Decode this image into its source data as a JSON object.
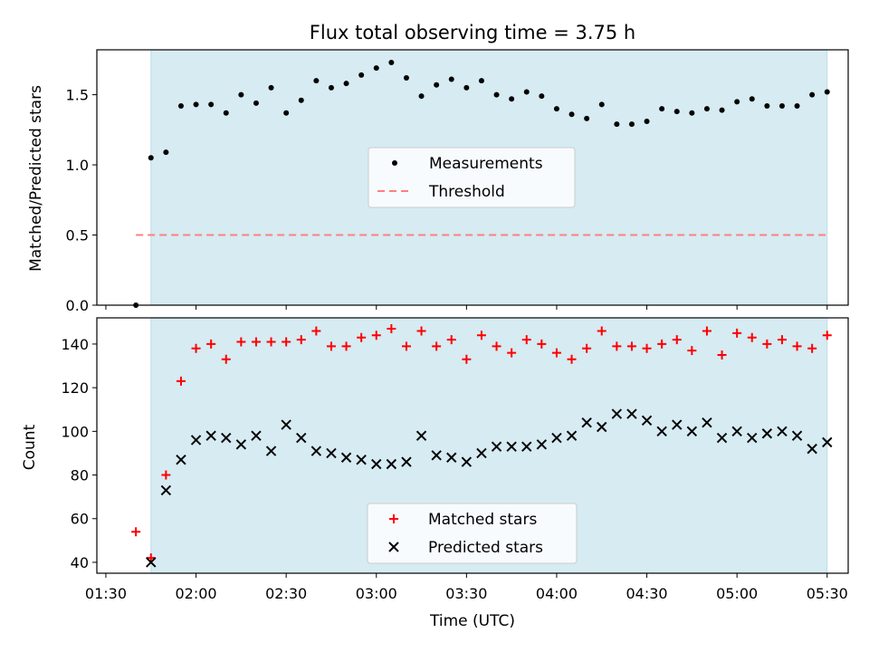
{
  "colors": {
    "shade": "#add8e6",
    "measurement": "#000000",
    "threshold": "#ff7f7f",
    "matched": "#ff0000",
    "predicted": "#000000"
  },
  "chart_data": [
    {
      "type": "scatter",
      "title": "Flux total observing time = 3.75 h",
      "ylabel": "Matched/Predicted stars",
      "xlabel": "",
      "xlim": [
        "01:27",
        "05:37"
      ],
      "ylim": [
        0,
        1.82
      ],
      "yticks": [
        0.0,
        0.5,
        1.0,
        1.5
      ],
      "ytick_labels": [
        "0.0",
        "0.5",
        "1.0",
        "1.5"
      ],
      "shaded_span": [
        "01:45",
        "05:30"
      ],
      "series": [
        {
          "name": "Measurements",
          "marker": "dot",
          "x": [
            "01:40",
            "01:45",
            "01:50",
            "01:55",
            "02:00",
            "02:05",
            "02:10",
            "02:15",
            "02:20",
            "02:25",
            "02:30",
            "02:35",
            "02:40",
            "02:45",
            "02:50",
            "02:55",
            "03:00",
            "03:05",
            "03:10",
            "03:15",
            "03:20",
            "03:25",
            "03:30",
            "03:35",
            "03:40",
            "03:45",
            "03:50",
            "03:55",
            "04:00",
            "04:05",
            "04:10",
            "04:15",
            "04:20",
            "04:25",
            "04:30",
            "04:35",
            "04:40",
            "04:45",
            "04:50",
            "04:55",
            "05:00",
            "05:05",
            "05:10",
            "05:15",
            "05:20",
            "05:25",
            "05:30"
          ],
          "y": [
            0.0,
            1.05,
            1.09,
            1.42,
            1.43,
            1.43,
            1.37,
            1.5,
            1.44,
            1.55,
            1.37,
            1.46,
            1.6,
            1.55,
            1.58,
            1.64,
            1.69,
            1.73,
            1.62,
            1.49,
            1.57,
            1.61,
            1.55,
            1.6,
            1.5,
            1.47,
            1.52,
            1.49,
            1.4,
            1.36,
            1.33,
            1.43,
            1.29,
            1.29,
            1.31,
            1.4,
            1.38,
            1.37,
            1.4,
            1.39,
            1.45,
            1.47,
            1.42,
            1.42,
            1.42,
            1.5,
            1.52
          ]
        },
        {
          "name": "Threshold",
          "style": "dashed",
          "x": [
            "01:40",
            "05:30"
          ],
          "y": [
            0.5,
            0.5
          ]
        }
      ]
    },
    {
      "type": "scatter",
      "title": "",
      "xlabel": "Time (UTC)",
      "ylabel": "Count",
      "xlim": [
        "01:27",
        "05:37"
      ],
      "ylim": [
        35,
        152
      ],
      "xticks": [
        "01:30",
        "02:00",
        "02:30",
        "03:00",
        "03:30",
        "04:00",
        "04:30",
        "05:00",
        "05:30"
      ],
      "yticks": [
        40,
        60,
        80,
        100,
        120,
        140
      ],
      "ytick_labels": [
        "40",
        "60",
        "80",
        "100",
        "120",
        "140"
      ],
      "shaded_span": [
        "01:45",
        "05:30"
      ],
      "series": [
        {
          "name": "Matched stars",
          "marker": "plus",
          "x": [
            "01:40",
            "01:45",
            "01:50",
            "01:55",
            "02:00",
            "02:05",
            "02:10",
            "02:15",
            "02:20",
            "02:25",
            "02:30",
            "02:35",
            "02:40",
            "02:45",
            "02:50",
            "02:55",
            "03:00",
            "03:05",
            "03:10",
            "03:15",
            "03:20",
            "03:25",
            "03:30",
            "03:35",
            "03:40",
            "03:45",
            "03:50",
            "03:55",
            "04:00",
            "04:05",
            "04:10",
            "04:15",
            "04:20",
            "04:25",
            "04:30",
            "04:35",
            "04:40",
            "04:45",
            "04:50",
            "04:55",
            "05:00",
            "05:05",
            "05:10",
            "05:15",
            "05:20",
            "05:25",
            "05:30"
          ],
          "y": [
            54,
            42,
            80,
            123,
            138,
            140,
            133,
            141,
            141,
            141,
            141,
            142,
            146,
            139,
            139,
            143,
            144,
            147,
            139,
            146,
            139,
            142,
            133,
            144,
            139,
            136,
            142,
            140,
            136,
            133,
            138,
            146,
            139,
            139,
            138,
            140,
            142,
            137,
            146,
            135,
            145,
            143,
            140,
            142,
            139,
            138,
            144
          ]
        },
        {
          "name": "Predicted stars",
          "marker": "x",
          "x": [
            "01:45",
            "01:50",
            "01:55",
            "02:00",
            "02:05",
            "02:10",
            "02:15",
            "02:20",
            "02:25",
            "02:30",
            "02:35",
            "02:40",
            "02:45",
            "02:50",
            "02:55",
            "03:00",
            "03:05",
            "03:10",
            "03:15",
            "03:20",
            "03:25",
            "03:30",
            "03:35",
            "03:40",
            "03:45",
            "03:50",
            "03:55",
            "04:00",
            "04:05",
            "04:10",
            "04:15",
            "04:20",
            "04:25",
            "04:30",
            "04:35",
            "04:40",
            "04:45",
            "04:50",
            "04:55",
            "05:00",
            "05:05",
            "05:10",
            "05:15",
            "05:20",
            "05:25",
            "05:30"
          ],
          "y": [
            40,
            73,
            87,
            96,
            98,
            97,
            94,
            98,
            91,
            103,
            97,
            91,
            90,
            88,
            87,
            85,
            85,
            86,
            98,
            89,
            88,
            86,
            90,
            93,
            93,
            93,
            94,
            97,
            98,
            104,
            102,
            108,
            108,
            105,
            100,
            103,
            100,
            104,
            97,
            100,
            97,
            99,
            100,
            98,
            92,
            95
          ]
        }
      ]
    }
  ]
}
